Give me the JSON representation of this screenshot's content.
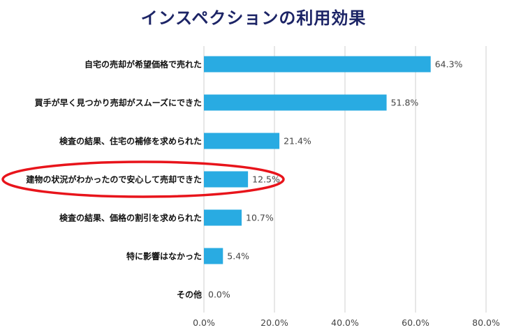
{
  "chart_data": {
    "type": "bar",
    "orientation": "horizontal",
    "title": "インスペクションの利用効果",
    "categories": [
      "自宅の売却が希望価格で売れた",
      "買手が早く見つかり売却がスムーズにできた",
      "検査の結果、住宅の補修を求められた",
      "建物の状況がわかったので安心して売却できた",
      "検査の結果、価格の割引を求められた",
      "特に影響はなかった",
      "その他"
    ],
    "values": [
      64.3,
      51.8,
      21.4,
      12.5,
      10.7,
      5.4,
      0.0
    ],
    "value_labels": [
      "64.3%",
      "51.8%",
      "21.4%",
      "12.5%",
      "10.7%",
      "5.4%",
      "0.0%"
    ],
    "xlim": [
      0,
      80
    ],
    "ticks": [
      0,
      20,
      40,
      60,
      80
    ],
    "tick_labels": [
      "0.0%",
      "20.0%",
      "40.0%",
      "60.0%",
      "80.0%"
    ],
    "grid": true,
    "highlighted_category_index": 3,
    "bar_color": "#29abe2",
    "highlight_color": "#e8141b",
    "title_color": "#1c2466"
  }
}
